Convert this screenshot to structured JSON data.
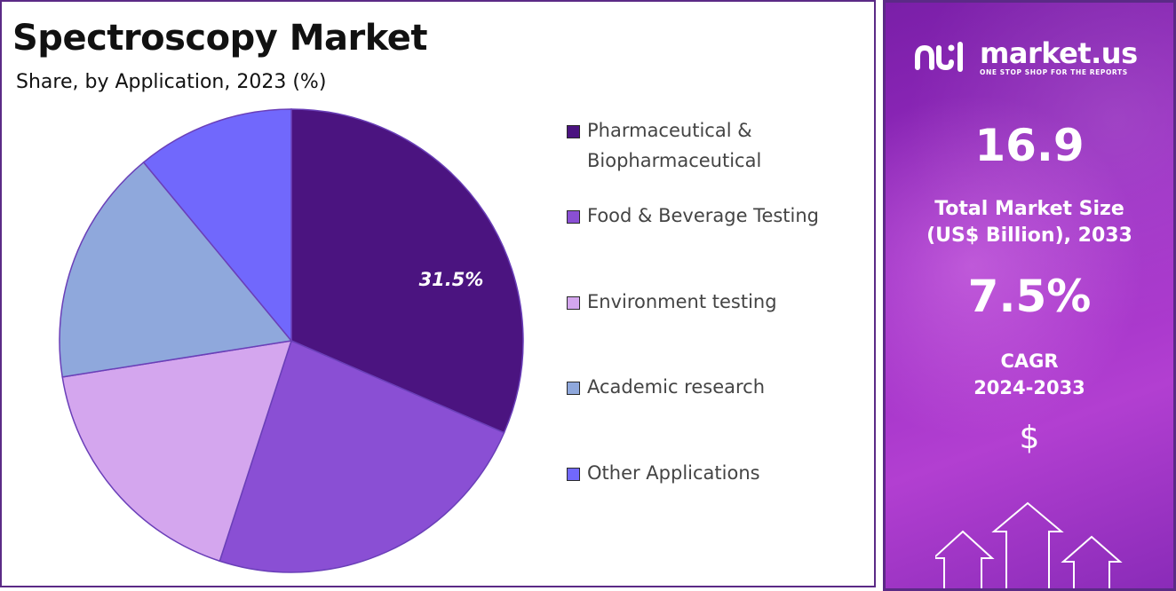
{
  "chart_data": {
    "type": "pie",
    "title": "Spectroscopy Market",
    "subtitle": "Share, by Application, 2023 (%)",
    "categories": [
      "Pharmaceutical & Biopharmaceutical",
      "Food & Beverage Testing",
      "Environment testing",
      "Academic research",
      "Other Applications"
    ],
    "values": [
      31.5,
      23.5,
      17.5,
      16.5,
      11.0
    ],
    "colors": [
      "#4b1480",
      "#8a4fd4",
      "#d4a6ee",
      "#8fa8dc",
      "#7168fc"
    ],
    "data_labels": [
      "31.5%"
    ],
    "start_angle_deg": 0,
    "direction": "clockwise",
    "legend_position": "right"
  },
  "legend": {
    "items": [
      {
        "label_lines": [
          "Pharmaceutical &",
          "Biopharmaceutical"
        ],
        "color": "#4b1480"
      },
      {
        "label_lines": [
          "Food & Beverage Testing"
        ],
        "color": "#8a4fd4"
      },
      {
        "label_lines": [
          "Environment testing"
        ],
        "color": "#d4a6ee"
      },
      {
        "label_lines": [
          "Academic research"
        ],
        "color": "#8fa8dc"
      },
      {
        "label_lines": [
          "Other Applications"
        ],
        "color": "#7168fc"
      }
    ]
  },
  "sidebar": {
    "logo": {
      "name": "market.us",
      "tagline": "ONE STOP SHOP FOR THE REPORTS"
    },
    "market_size_value": "16.9",
    "market_size_label_line1": "Total Market Size",
    "market_size_label_line2": "(US$ Billion), 2033",
    "cagr_value": "7.5%",
    "cagr_label_line1": "CAGR",
    "cagr_label_line2": "2024-2033",
    "currency_symbol": "$",
    "accent_color": "#9b2cc4"
  }
}
